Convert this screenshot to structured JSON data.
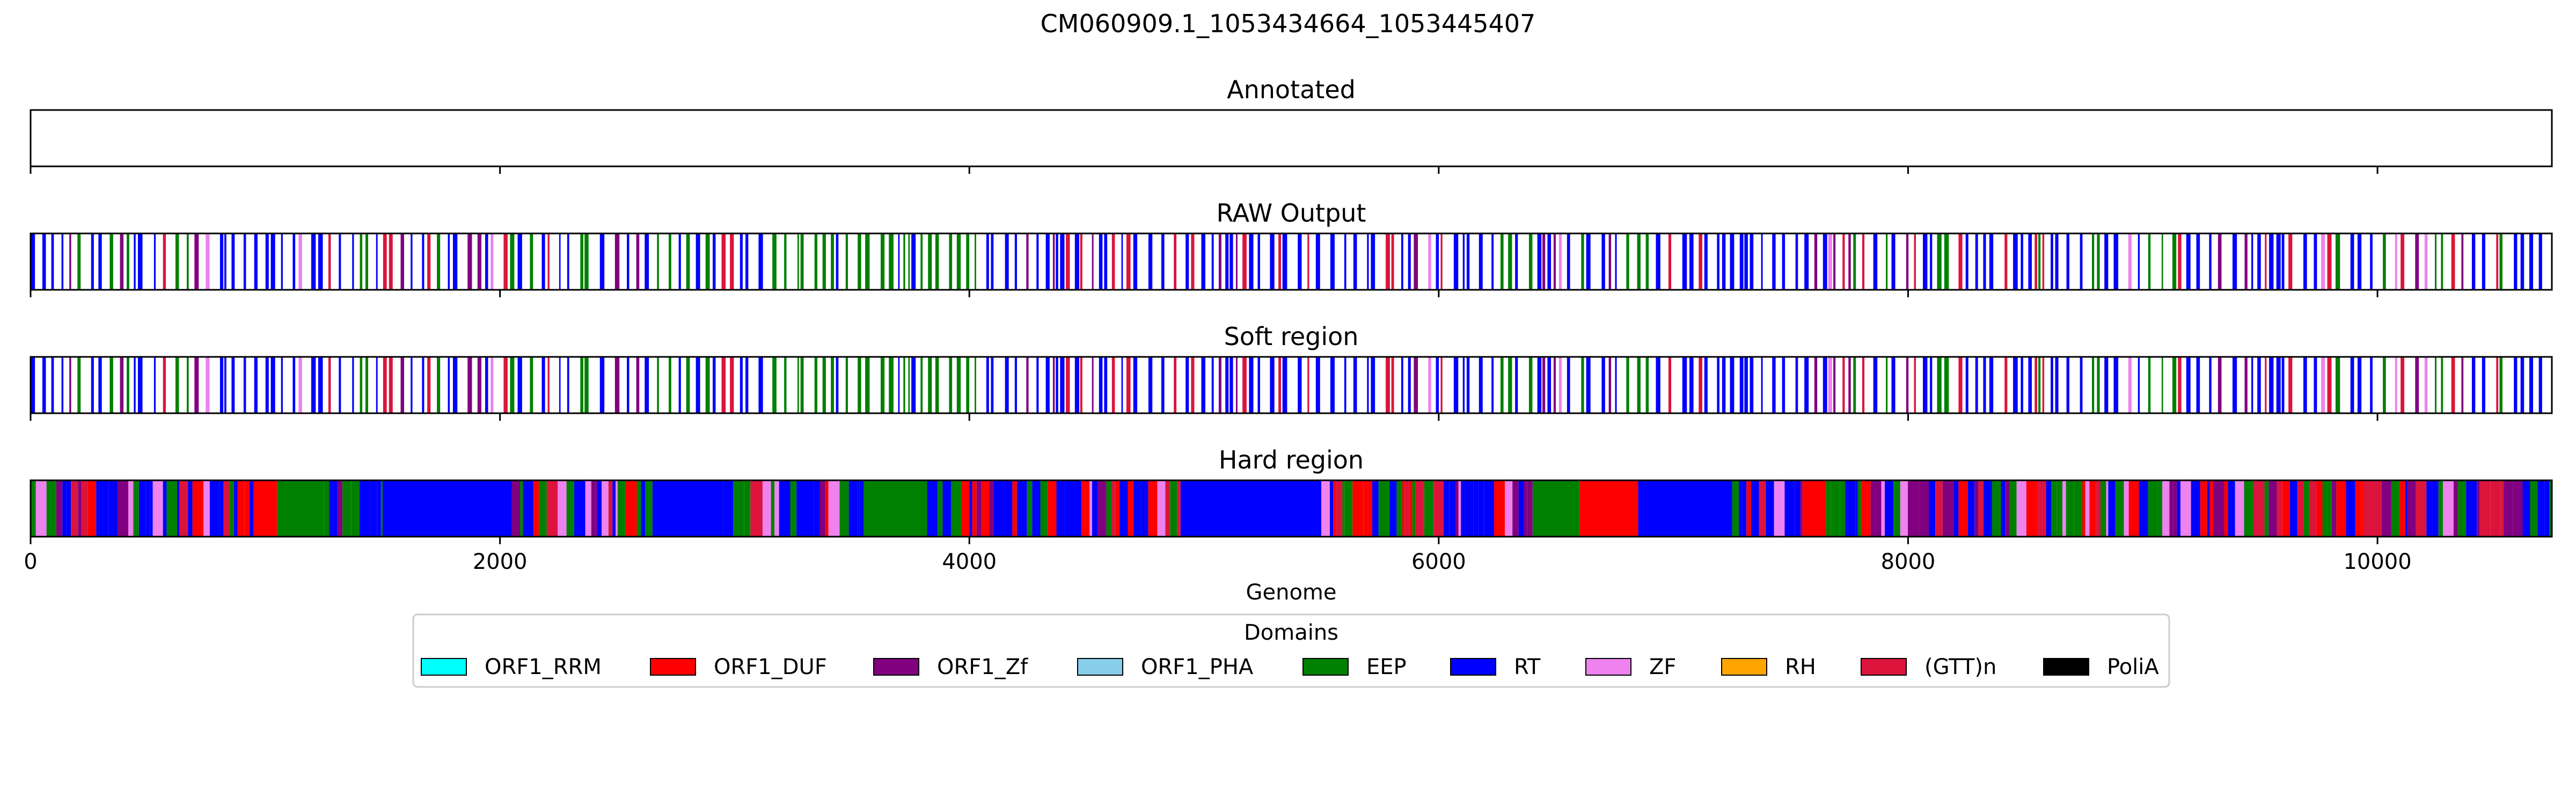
{
  "chart_data": {
    "type": "heatmap",
    "title": "CM060909.1_1053434664_1053445407",
    "genome_length": 10743,
    "xlabel": "Genome",
    "xlim": [
      0,
      10743
    ],
    "xticks": [
      0,
      2000,
      4000,
      6000,
      8000,
      10000
    ],
    "xtick_labels": [
      "0",
      "2000",
      "4000",
      "6000",
      "8000",
      "10000"
    ],
    "tracks": [
      {
        "title": "Annotated",
        "segments": []
      },
      {
        "title": "RAW Output",
        "segments": []
      },
      {
        "title": "Soft region",
        "segments": []
      },
      {
        "title": "Hard region",
        "segments": []
      }
    ],
    "legend": {
      "title": "Domains",
      "placement": "bottom-center",
      "entries": [
        {
          "label": "ORF1_RRM",
          "color": "#00ffff"
        },
        {
          "label": "ORF1_DUF",
          "color": "#ff0000"
        },
        {
          "label": "ORF1_Zf",
          "color": "#800080"
        },
        {
          "label": "ORF1_PHA",
          "color": "#87ceeb"
        },
        {
          "label": "EEP",
          "color": "#008000"
        },
        {
          "label": "RT",
          "color": "#0000ff"
        },
        {
          "label": "ZF",
          "color": "#ee82ee"
        },
        {
          "label": "RH",
          "color": "#ffa500"
        },
        {
          "label": "(GTT)n",
          "color": "#dc143c"
        },
        {
          "label": "PoliA",
          "color": "#000000"
        }
      ]
    }
  }
}
